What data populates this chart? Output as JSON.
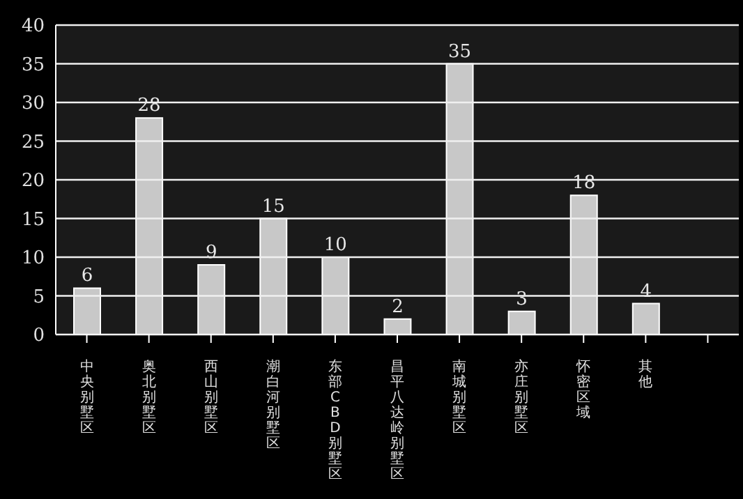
{
  "chart_data": {
    "type": "bar",
    "categories": [
      "中央别墅区",
      "奥北别墅区",
      "西山别墅区",
      "潮白河别墅区",
      "东部CBD别墅区",
      "昌平八达岭别墅区",
      "南城别墅区",
      "亦庄别墅区",
      "怀密区域",
      "其他",
      null
    ],
    "values": [
      6,
      28,
      9,
      15,
      10,
      2,
      35,
      3,
      18,
      4,
      null
    ],
    "color": "#c8c8c8",
    "ylim": [
      0,
      40
    ],
    "yticks": [
      0,
      5,
      10,
      15,
      20,
      25,
      30,
      35,
      40
    ],
    "grid": "y",
    "data_labels": true
  }
}
